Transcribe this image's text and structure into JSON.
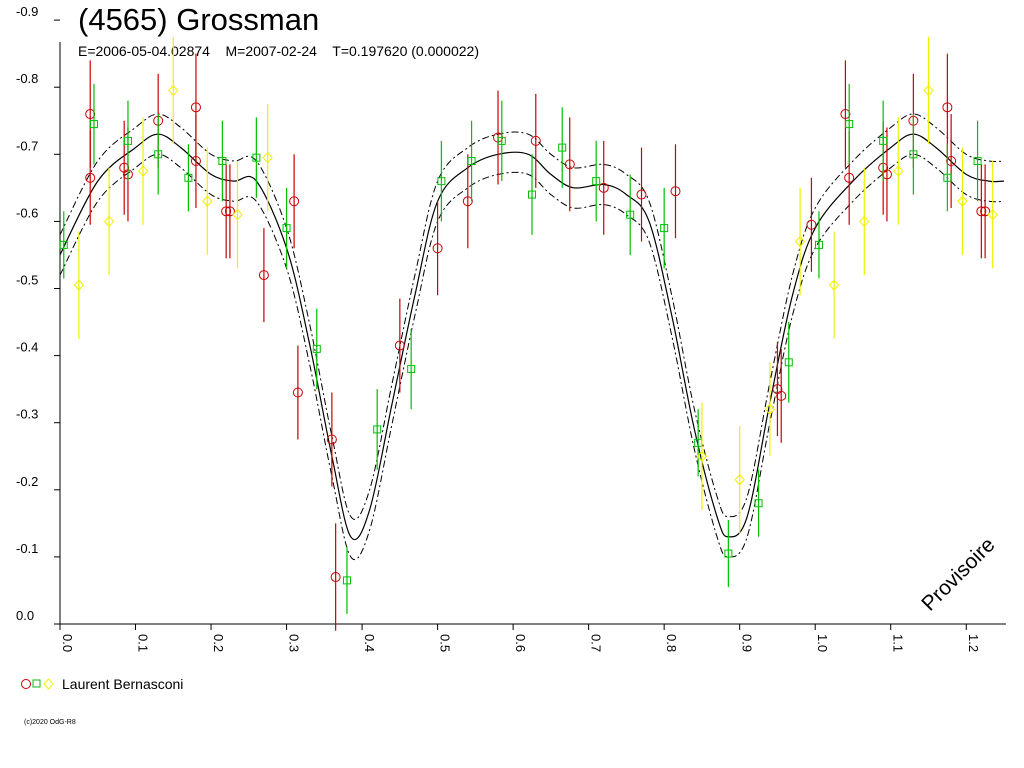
{
  "title": "(4565) Grossman",
  "subtitle": "E=2006-05-04.02874    M=2007-02-24    T=0.197620 (0.000022)",
  "watermark": "Provisoire",
  "legend": {
    "observer": "Laurent Bernasconi"
  },
  "copyright": "(c)2020 OdG-R8",
  "colors": {
    "red": "#cc0000",
    "green": "#00c000",
    "yellow": "#f0f000",
    "curve": "#000000"
  },
  "chart_data": {
    "type": "scatter",
    "x_tick_labels": [
      "0.0",
      "0.1",
      "0.2",
      "0.3",
      "0.4",
      "0.5",
      "0.6",
      "0.7",
      "0.8",
      "0.9",
      "1.0",
      "1.1",
      "1.2"
    ],
    "y_tick_labels": [
      "-0.9",
      "-0.8",
      "-0.7",
      "-0.6",
      "-0.5",
      "-0.4",
      "-0.3",
      "-0.2",
      "-0.1",
      "0.0"
    ],
    "xlim": [
      0.0,
      1.25
    ],
    "ylim": [
      0.0,
      -0.9
    ],
    "y_inverted": true,
    "grid": false,
    "legend_position": "bottom-left",
    "fit_curve": {
      "x": [
        0.0,
        0.05,
        0.1,
        0.13,
        0.16,
        0.2,
        0.23,
        0.26,
        0.3,
        0.33,
        0.36,
        0.385,
        0.41,
        0.44,
        0.47,
        0.5,
        0.54,
        0.58,
        0.62,
        0.65,
        0.68,
        0.72,
        0.75,
        0.78,
        0.81,
        0.84,
        0.87,
        0.885,
        0.91,
        0.94,
        0.97,
        1.0,
        1.05,
        1.1,
        1.13,
        1.16,
        1.2,
        1.23,
        1.25
      ],
      "y": [
        -0.55,
        -0.66,
        -0.71,
        -0.73,
        -0.71,
        -0.67,
        -0.66,
        -0.66,
        -0.56,
        -0.42,
        -0.25,
        -0.13,
        -0.17,
        -0.33,
        -0.49,
        -0.63,
        -0.68,
        -0.7,
        -0.7,
        -0.67,
        -0.65,
        -0.655,
        -0.64,
        -0.6,
        -0.46,
        -0.29,
        -0.16,
        -0.13,
        -0.16,
        -0.33,
        -0.49,
        -0.59,
        -0.66,
        -0.71,
        -0.73,
        -0.71,
        -0.67,
        -0.66,
        -0.66
      ]
    },
    "envelope_offset": 0.03,
    "series": [
      {
        "name": "Laurent Bernasconi",
        "marker": "circle",
        "color": "red",
        "points": [
          [
            0.04,
            -0.76,
            0.08
          ],
          [
            0.04,
            -0.665,
            0.07
          ],
          [
            0.085,
            -0.68,
            0.07
          ],
          [
            0.09,
            -0.67,
            0.07
          ],
          [
            0.13,
            -0.75,
            0.07
          ],
          [
            0.18,
            -0.77,
            0.08
          ],
          [
            0.18,
            -0.69,
            0.07
          ],
          [
            0.22,
            -0.615,
            0.07
          ],
          [
            0.225,
            -0.615,
            0.07
          ],
          [
            0.27,
            -0.52,
            0.07
          ],
          [
            0.31,
            -0.63,
            0.07
          ],
          [
            0.315,
            -0.345,
            0.07
          ],
          [
            0.36,
            -0.275,
            0.07
          ],
          [
            0.365,
            -0.07,
            0.08
          ],
          [
            0.45,
            -0.415,
            0.07
          ],
          [
            0.5,
            -0.56,
            0.07
          ],
          [
            0.54,
            -0.63,
            0.07
          ],
          [
            0.58,
            -0.725,
            0.07
          ],
          [
            0.63,
            -0.72,
            0.07
          ],
          [
            0.675,
            -0.685,
            0.07
          ],
          [
            0.72,
            -0.65,
            0.07
          ],
          [
            0.77,
            -0.64,
            0.07
          ],
          [
            0.815,
            -0.645,
            0.07
          ],
          [
            0.95,
            -0.35,
            0.07
          ],
          [
            0.955,
            -0.34,
            0.07
          ],
          [
            0.995,
            -0.595,
            0.07
          ],
          [
            1.04,
            -0.76,
            0.08
          ],
          [
            1.045,
            -0.665,
            0.07
          ],
          [
            1.09,
            -0.68,
            0.07
          ],
          [
            1.095,
            -0.67,
            0.07
          ],
          [
            1.13,
            -0.75,
            0.07
          ],
          [
            1.175,
            -0.77,
            0.08
          ],
          [
            1.18,
            -0.69,
            0.07
          ],
          [
            1.22,
            -0.615,
            0.07
          ],
          [
            1.225,
            -0.615,
            0.07
          ]
        ]
      },
      {
        "name": "Laurent Bernasconi",
        "marker": "square",
        "color": "green",
        "points": [
          [
            0.005,
            -0.565,
            0.05
          ],
          [
            0.045,
            -0.745,
            0.06
          ],
          [
            0.09,
            -0.72,
            0.06
          ],
          [
            0.13,
            -0.7,
            0.06
          ],
          [
            0.17,
            -0.665,
            0.05
          ],
          [
            0.215,
            -0.69,
            0.06
          ],
          [
            0.26,
            -0.695,
            0.06
          ],
          [
            0.3,
            -0.59,
            0.06
          ],
          [
            0.34,
            -0.41,
            0.06
          ],
          [
            0.38,
            -0.065,
            0.05
          ],
          [
            0.42,
            -0.29,
            0.06
          ],
          [
            0.465,
            -0.38,
            0.06
          ],
          [
            0.505,
            -0.66,
            0.06
          ],
          [
            0.545,
            -0.69,
            0.06
          ],
          [
            0.585,
            -0.72,
            0.06
          ],
          [
            0.625,
            -0.64,
            0.06
          ],
          [
            0.665,
            -0.71,
            0.06
          ],
          [
            0.71,
            -0.66,
            0.06
          ],
          [
            0.755,
            -0.61,
            0.06
          ],
          [
            0.8,
            -0.59,
            0.06
          ],
          [
            0.845,
            -0.27,
            0.05
          ],
          [
            0.885,
            -0.105,
            0.05
          ],
          [
            0.925,
            -0.18,
            0.05
          ],
          [
            0.965,
            -0.39,
            0.06
          ],
          [
            1.005,
            -0.565,
            0.05
          ],
          [
            1.045,
            -0.745,
            0.06
          ],
          [
            1.09,
            -0.72,
            0.06
          ],
          [
            1.13,
            -0.7,
            0.06
          ],
          [
            1.175,
            -0.665,
            0.05
          ],
          [
            1.215,
            -0.69,
            0.06
          ]
        ]
      },
      {
        "name": "Laurent Bernasconi",
        "marker": "diamond",
        "color": "yellow",
        "points": [
          [
            0.025,
            -0.505,
            0.08
          ],
          [
            0.065,
            -0.6,
            0.08
          ],
          [
            0.11,
            -0.675,
            0.08
          ],
          [
            0.15,
            -0.795,
            0.08
          ],
          [
            0.195,
            -0.63,
            0.08
          ],
          [
            0.235,
            -0.61,
            0.08
          ],
          [
            0.275,
            -0.695,
            0.08
          ],
          [
            0.85,
            -0.25,
            0.08
          ],
          [
            0.9,
            -0.215,
            0.08
          ],
          [
            0.94,
            -0.32,
            0.07
          ],
          [
            0.98,
            -0.57,
            0.08
          ],
          [
            1.025,
            -0.505,
            0.08
          ],
          [
            1.065,
            -0.6,
            0.08
          ],
          [
            1.11,
            -0.675,
            0.08
          ],
          [
            1.15,
            -0.795,
            0.08
          ],
          [
            1.195,
            -0.63,
            0.08
          ],
          [
            1.235,
            -0.61,
            0.08
          ]
        ]
      }
    ]
  }
}
